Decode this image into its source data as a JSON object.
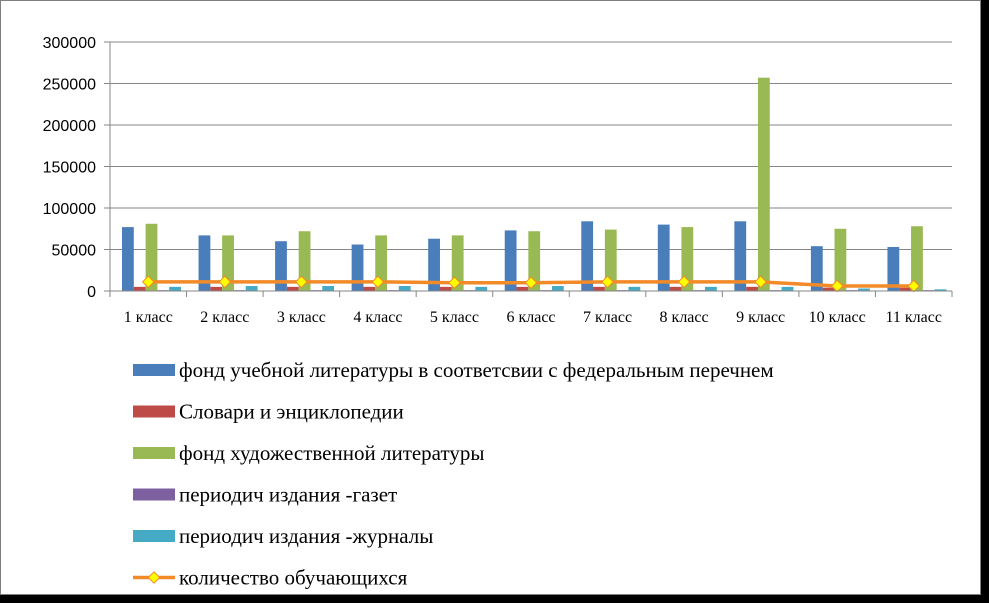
{
  "chart_data": {
    "type": "bar",
    "title": "",
    "xlabel": "",
    "ylabel": "",
    "ylim": [
      0,
      300000
    ],
    "yticks": [
      0,
      50000,
      100000,
      150000,
      200000,
      250000,
      300000
    ],
    "grid": true,
    "legend_position": "bottom",
    "categories": [
      "1 класс",
      "2 класс",
      "3 класс",
      "4 класс",
      "5 класс",
      "6 класс",
      "7 класс",
      "8 класс",
      "9 класс",
      "10 класс",
      "11 класс"
    ],
    "series": [
      {
        "name": "фонд учебной литературы в соответсвии с федеральным перечнем",
        "type": "bar",
        "color": "#4a7ebb",
        "values": [
          77000,
          67000,
          60000,
          56000,
          63000,
          73000,
          84000,
          80000,
          84000,
          54000,
          53000
        ]
      },
      {
        "name": "Словари и энциклопедии",
        "type": "bar",
        "color": "#be4b48",
        "values": [
          5000,
          5000,
          5000,
          5000,
          5000,
          5000,
          5000,
          5000,
          5000,
          4000,
          4000
        ]
      },
      {
        "name": "фонд художественной литературы",
        "type": "bar",
        "color": "#98b954",
        "values": [
          81000,
          67000,
          72000,
          67000,
          67000,
          72000,
          74000,
          77000,
          257000,
          75000,
          78000
        ]
      },
      {
        "name": "периодич издания -газет",
        "type": "bar",
        "color": "#7d60a0",
        "values": [
          1000,
          1000,
          1000,
          1000,
          1000,
          1000,
          1000,
          1000,
          1000,
          1000,
          1000
        ]
      },
      {
        "name": "периодич издания -журналы",
        "type": "bar",
        "color": "#46aac5",
        "values": [
          5000,
          6000,
          6000,
          6000,
          5000,
          6000,
          5000,
          5000,
          5000,
          3000,
          2000
        ]
      },
      {
        "name": "количество обучающихся",
        "type": "line",
        "color": "#f28a28",
        "marker_color": "#ffff00",
        "values": [
          11000,
          11000,
          11000,
          11000,
          10000,
          10000,
          11000,
          11000,
          11000,
          6000,
          6000
        ]
      }
    ]
  }
}
